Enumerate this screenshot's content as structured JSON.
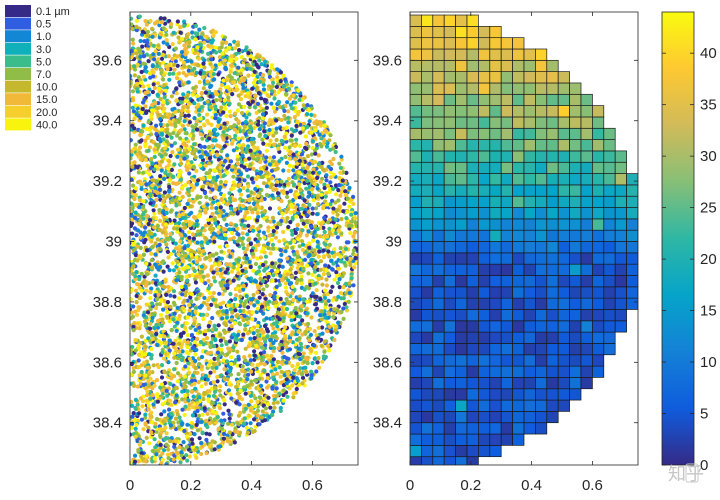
{
  "chart_data": [
    {
      "type": "scatter",
      "title": "",
      "xlabel": "",
      "ylabel": "",
      "xlim": [
        0,
        0.75
      ],
      "ylim": [
        38.26,
        39.76
      ],
      "x_ticks": [
        0,
        0.2,
        0.4,
        0.6
      ],
      "y_ticks": [
        38.4,
        38.6,
        38.8,
        39,
        39.2,
        39.4,
        39.6
      ],
      "x_tick_labels": [
        "0",
        "0.2",
        "0.4",
        "0.6"
      ],
      "y_tick_labels": [
        "38.4",
        "38.6",
        "38.8",
        "39",
        "39.2",
        "39.4",
        "39.6"
      ],
      "domain": "half-disk centered at x=0, y=39.0, radius≈0.75",
      "point_count_approx": 6000,
      "legend": {
        "placement": "top-left, outside plot",
        "entries": [
          "0.1 µm",
          "0.5",
          "1.0",
          "3.0",
          "5.0",
          "7.0",
          "10.0",
          "15.0",
          "20.0",
          "40.0"
        ],
        "colors": [
          "#352a87",
          "#2f5fe0",
          "#1487d4",
          "#10b0ba",
          "#3cbc8a",
          "#8fbd45",
          "#c6b82e",
          "#f2b83a",
          "#f6cf2c",
          "#f9f40e"
        ]
      }
    },
    {
      "type": "heatmap",
      "title": "",
      "xlabel": "",
      "ylabel": "",
      "xlim": [
        0,
        0.75
      ],
      "ylim": [
        38.26,
        39.76
      ],
      "x_ticks": [
        0,
        0.2,
        0.4,
        0.6
      ],
      "y_ticks": [
        38.4,
        38.6,
        38.8,
        39,
        39.2,
        39.4,
        39.6
      ],
      "x_tick_labels": [
        "0",
        "0.2",
        "0.4",
        "0.6"
      ],
      "y_tick_labels": [
        "38.4",
        "38.6",
        "38.8",
        "39",
        "39.2",
        "39.4",
        "39.6"
      ],
      "grid": "approx 20 columns × 40 rows of square cells clipped to half-disk",
      "value_trend": "low (~0–8) below y=39.0, rising to 30–42 near the top",
      "colorbar": {
        "min": 0,
        "max": 44,
        "ticks": [
          0,
          5,
          10,
          15,
          20,
          25,
          30,
          35,
          40
        ],
        "tick_labels": [
          "0",
          "5",
          "10",
          "15",
          "20",
          "25",
          "30",
          "35",
          "40"
        ],
        "colors": [
          "#352a87",
          "#0f5cdd",
          "#1481d6",
          "#06a4ca",
          "#2eb7a4",
          "#87bf77",
          "#d1bb59",
          "#fec832",
          "#f9fb0e"
        ]
      }
    }
  ],
  "watermark": "知乎"
}
